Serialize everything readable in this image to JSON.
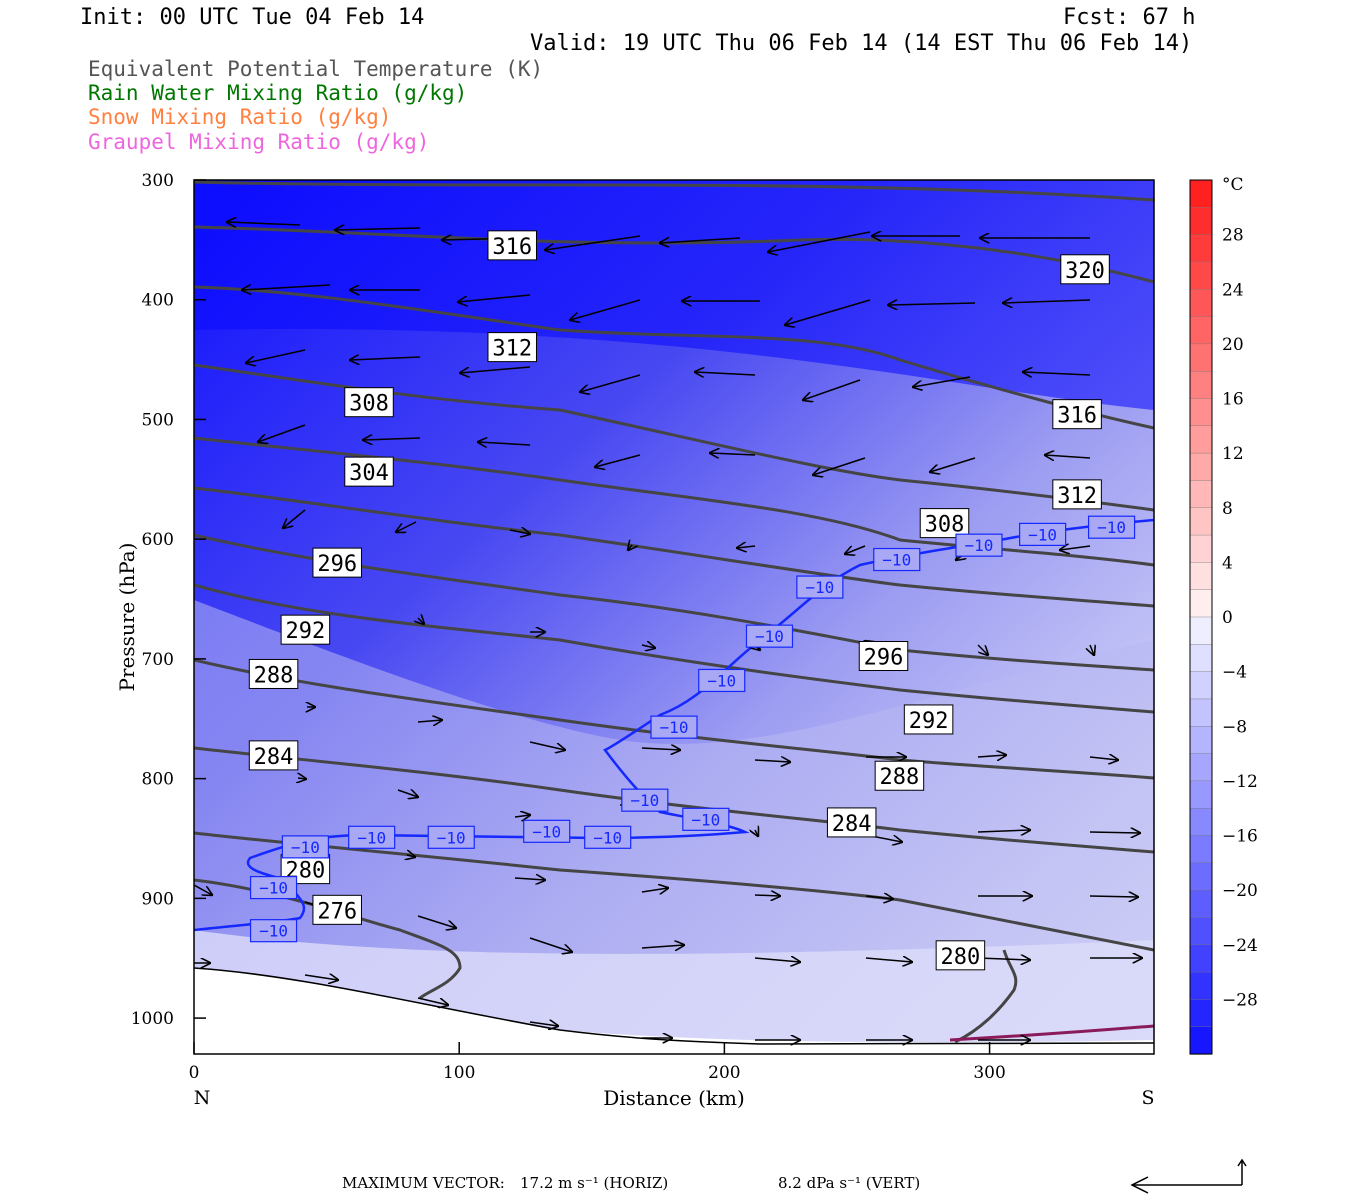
{
  "header": {
    "init": "Init: 00 UTC Tue 04 Feb 14",
    "fcst": "Fcst:   67 h",
    "valid": "Valid: 19 UTC Thu 06 Feb 14 (14 EST Thu 06 Feb 14)"
  },
  "legend": [
    {
      "text": "Equivalent Potential Temperature (K)",
      "color": "#555555"
    },
    {
      "text": "Rain Water Mixing Ratio (g/kg)",
      "color": "#007700"
    },
    {
      "text": "Snow Mixing Ratio (g/kg)",
      "color": "#ff8040"
    },
    {
      "text": "Graupel Mixing Ratio (g/kg)",
      "color": "#ee66dd"
    }
  ],
  "footer": {
    "max_vector_label": "MAXIMUM VECTOR:",
    "horiz": "17.2 m s⁻¹ (HORIZ)",
    "vert": "8.2 dPa s⁻¹ (VERT)"
  },
  "chart_data": {
    "type": "cross-section",
    "xlabel": "Distance (km)",
    "ylabel": "Pressure (hPa)",
    "xlim": [
      0,
      362
    ],
    "ylim": [
      1030,
      300
    ],
    "x_ticks": [
      0,
      100,
      200,
      300
    ],
    "y_ticks": [
      300,
      400,
      500,
      600,
      700,
      800,
      900,
      1000
    ],
    "endpoints": {
      "left": "N",
      "right": "S"
    },
    "colorbar": {
      "unit": "°C",
      "labels": [
        28,
        24,
        20,
        16,
        12,
        8,
        4,
        0,
        -4,
        -8,
        -12,
        -16,
        -20,
        -24,
        -28
      ],
      "levels": [
        32,
        30,
        28,
        26,
        24,
        22,
        20,
        18,
        16,
        14,
        12,
        10,
        8,
        6,
        4,
        2,
        0,
        -2,
        -4,
        -6,
        -8,
        -10,
        -12,
        -14,
        -16,
        -18,
        -20,
        -22,
        -24,
        -26,
        -28,
        -30,
        -32
      ]
    },
    "theta_e_labels": [
      {
        "x": 120,
        "p": 355,
        "text": "316"
      },
      {
        "x": 336,
        "p": 375,
        "text": "320"
      },
      {
        "x": 120,
        "p": 440,
        "text": "312"
      },
      {
        "x": 66,
        "p": 486,
        "text": "308"
      },
      {
        "x": 333,
        "p": 496,
        "text": "316"
      },
      {
        "x": 66,
        "p": 544,
        "text": "304"
      },
      {
        "x": 333,
        "p": 563,
        "text": "312"
      },
      {
        "x": 283,
        "p": 587,
        "text": "308"
      },
      {
        "x": 54,
        "p": 620,
        "text": "296"
      },
      {
        "x": 42,
        "p": 676,
        "text": "292"
      },
      {
        "x": 260,
        "p": 698,
        "text": "296"
      },
      {
        "x": 30,
        "p": 713,
        "text": "288"
      },
      {
        "x": 277,
        "p": 751,
        "text": "292"
      },
      {
        "x": 30,
        "p": 781,
        "text": "284"
      },
      {
        "x": 266,
        "p": 798,
        "text": "288"
      },
      {
        "x": 248,
        "p": 837,
        "text": "284"
      },
      {
        "x": 42,
        "p": 876,
        "text": "280"
      },
      {
        "x": 54,
        "p": 910,
        "text": "276"
      },
      {
        "x": 289,
        "p": 948,
        "text": "280"
      }
    ],
    "temp_labels": [
      {
        "x": 346,
        "p": 590,
        "text": "−10"
      },
      {
        "x": 320,
        "p": 596,
        "text": "−10"
      },
      {
        "x": 296,
        "p": 605,
        "text": "−10"
      },
      {
        "x": 265,
        "p": 617,
        "text": "−10"
      },
      {
        "x": 236,
        "p": 640,
        "text": "−10"
      },
      {
        "x": 217,
        "p": 681,
        "text": "−10"
      },
      {
        "x": 199,
        "p": 718,
        "text": "−10"
      },
      {
        "x": 181,
        "p": 757,
        "text": "−10"
      },
      {
        "x": 170,
        "p": 818,
        "text": "−10"
      },
      {
        "x": 193,
        "p": 834,
        "text": "−10"
      },
      {
        "x": 133,
        "p": 844,
        "text": "−10"
      },
      {
        "x": 156,
        "p": 849,
        "text": "−10"
      },
      {
        "x": 97,
        "p": 849,
        "text": "−10"
      },
      {
        "x": 67,
        "p": 849,
        "text": "−10"
      },
      {
        "x": 42,
        "p": 857,
        "text": "−10"
      },
      {
        "x": 30,
        "p": 891,
        "text": "−10"
      },
      {
        "x": 30,
        "p": 927,
        "text": "−10"
      }
    ]
  }
}
